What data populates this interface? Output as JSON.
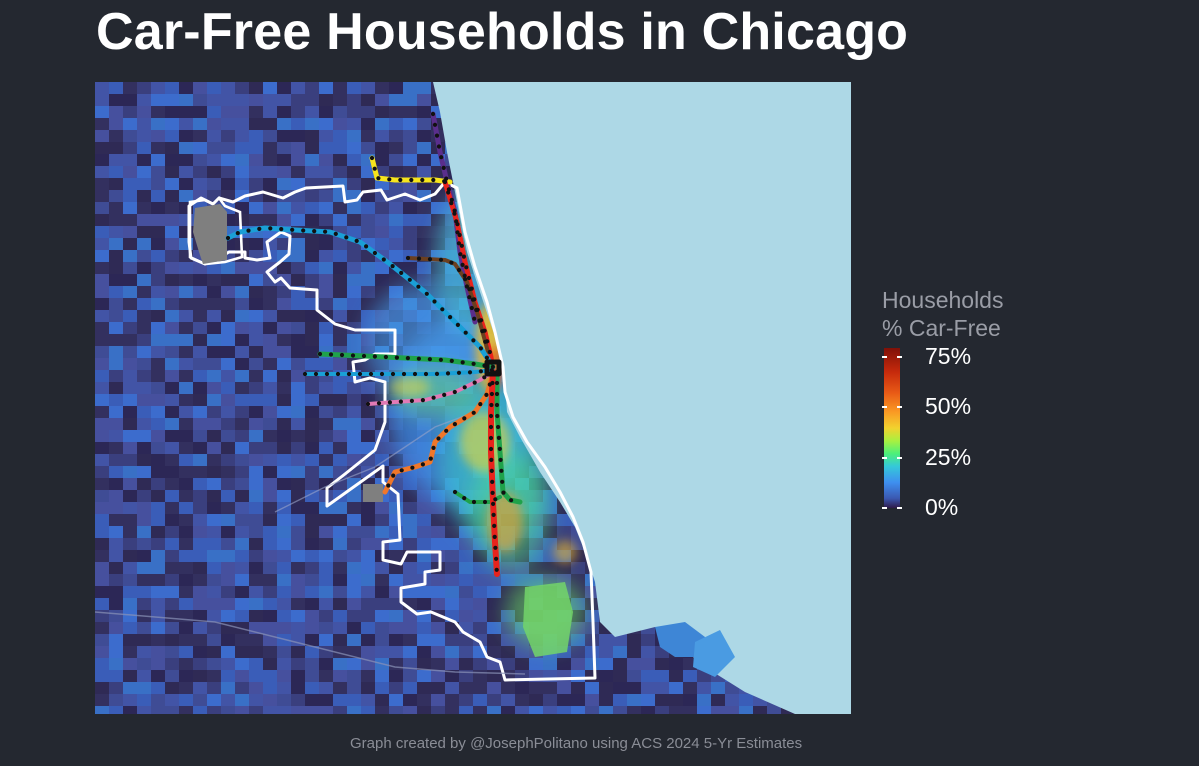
{
  "title": "Car-Free Households in Chicago",
  "legend": {
    "title_line1": "Households",
    "title_line2": "% Car-Free",
    "labels": [
      "75%",
      "50%",
      "25%",
      "0%"
    ]
  },
  "caption": "Graph created by @JosephPolitano using ACS 2024 5-Yr Estimates",
  "colors": {
    "background": "#242830",
    "lake": "#add8e6",
    "scale_low": "#2f1b49",
    "scale_mid": "#4cf07a",
    "scale_high": "#801008",
    "city_boundary": "#ffffff",
    "transit_red": "#e8231c",
    "transit_blue": "#1a9fd6",
    "transit_green": "#1fa24a",
    "transit_orange": "#f0772a",
    "transit_brown": "#6b3f1f",
    "transit_pink": "#e27ab5",
    "transit_purple": "#5a2e8c",
    "transit_yellow": "#f7e51c",
    "airport": "#808080"
  }
}
